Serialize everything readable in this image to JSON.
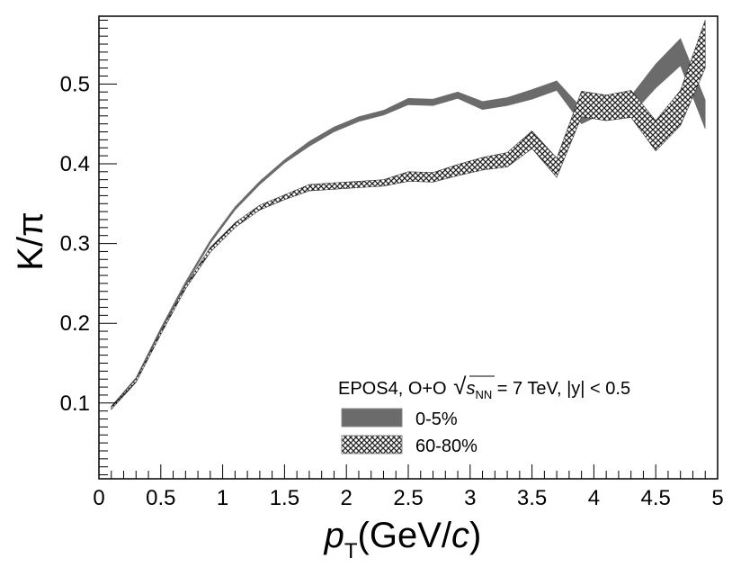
{
  "chart_data": {
    "type": "area",
    "title": "",
    "xlabel": "p",
    "xlabel_sub": "T",
    "xlabel_units_open": "(GeV/",
    "xlabel_units_var": "c",
    "xlabel_units_close": ")",
    "ylabel": "K/π",
    "xlim": [
      0,
      5
    ],
    "ylim": [
      0.005,
      0.585
    ],
    "grid": false,
    "x_ticks": [
      0,
      0.5,
      1,
      1.5,
      2,
      2.5,
      3,
      3.5,
      4,
      4.5,
      5
    ],
    "x_tick_labels": [
      "0",
      "0.5",
      "1",
      "1.5",
      "2",
      "2.5",
      "3",
      "3.5",
      "4",
      "4.5",
      "5"
    ],
    "y_ticks": [
      0.1,
      0.2,
      0.3,
      0.4,
      0.5
    ],
    "y_tick_labels": [
      "0.1",
      "0.2",
      "0.3",
      "0.4",
      "0.5"
    ],
    "legend": {
      "position": "bottom-right",
      "header_prefix": "EPOS4, O+O ",
      "header_sqrt": "s",
      "header_sub": "NN",
      "header_suffix": " = 7 TeV, |y| < 0.5",
      "entries": [
        "0-5%",
        "60-80%"
      ]
    },
    "series": [
      {
        "name": "0-5%",
        "style": "solid",
        "color": "#6b6b6b",
        "x": [
          0.1,
          0.3,
          0.5,
          0.7,
          0.9,
          1.1,
          1.3,
          1.5,
          1.7,
          1.9,
          2.1,
          2.3,
          2.5,
          2.7,
          2.9,
          3.1,
          3.3,
          3.5,
          3.7,
          3.9,
          4.1,
          4.3,
          4.5,
          4.7,
          4.9
        ],
        "y": [
          0.094,
          0.13,
          0.192,
          0.25,
          0.302,
          0.344,
          0.376,
          0.403,
          0.425,
          0.443,
          0.456,
          0.464,
          0.478,
          0.477,
          0.486,
          0.473,
          0.478,
          0.487,
          0.498,
          0.46,
          0.475,
          0.473,
          0.51,
          0.54,
          0.462
        ],
        "err": [
          0.002,
          0.002,
          0.002,
          0.002,
          0.002,
          0.002,
          0.002,
          0.002,
          0.003,
          0.003,
          0.003,
          0.003,
          0.004,
          0.004,
          0.004,
          0.005,
          0.005,
          0.006,
          0.006,
          0.01,
          0.01,
          0.012,
          0.015,
          0.017,
          0.018
        ]
      },
      {
        "name": "60-80%",
        "style": "hatched",
        "color": "#333333",
        "x": [
          0.1,
          0.3,
          0.5,
          0.7,
          0.9,
          1.1,
          1.3,
          1.5,
          1.7,
          1.9,
          2.1,
          2.3,
          2.5,
          2.7,
          2.9,
          3.1,
          3.3,
          3.5,
          3.7,
          3.9,
          4.1,
          4.3,
          4.5,
          4.7,
          4.9
        ],
        "y": [
          0.094,
          0.128,
          0.188,
          0.245,
          0.292,
          0.323,
          0.345,
          0.358,
          0.37,
          0.372,
          0.374,
          0.376,
          0.384,
          0.383,
          0.392,
          0.4,
          0.405,
          0.43,
          0.395,
          0.475,
          0.47,
          0.475,
          0.435,
          0.47,
          0.55
        ],
        "err": [
          0.002,
          0.002,
          0.002,
          0.002,
          0.003,
          0.003,
          0.003,
          0.003,
          0.004,
          0.004,
          0.004,
          0.004,
          0.006,
          0.006,
          0.007,
          0.008,
          0.009,
          0.011,
          0.012,
          0.016,
          0.016,
          0.017,
          0.019,
          0.022,
          0.03
        ]
      }
    ]
  }
}
